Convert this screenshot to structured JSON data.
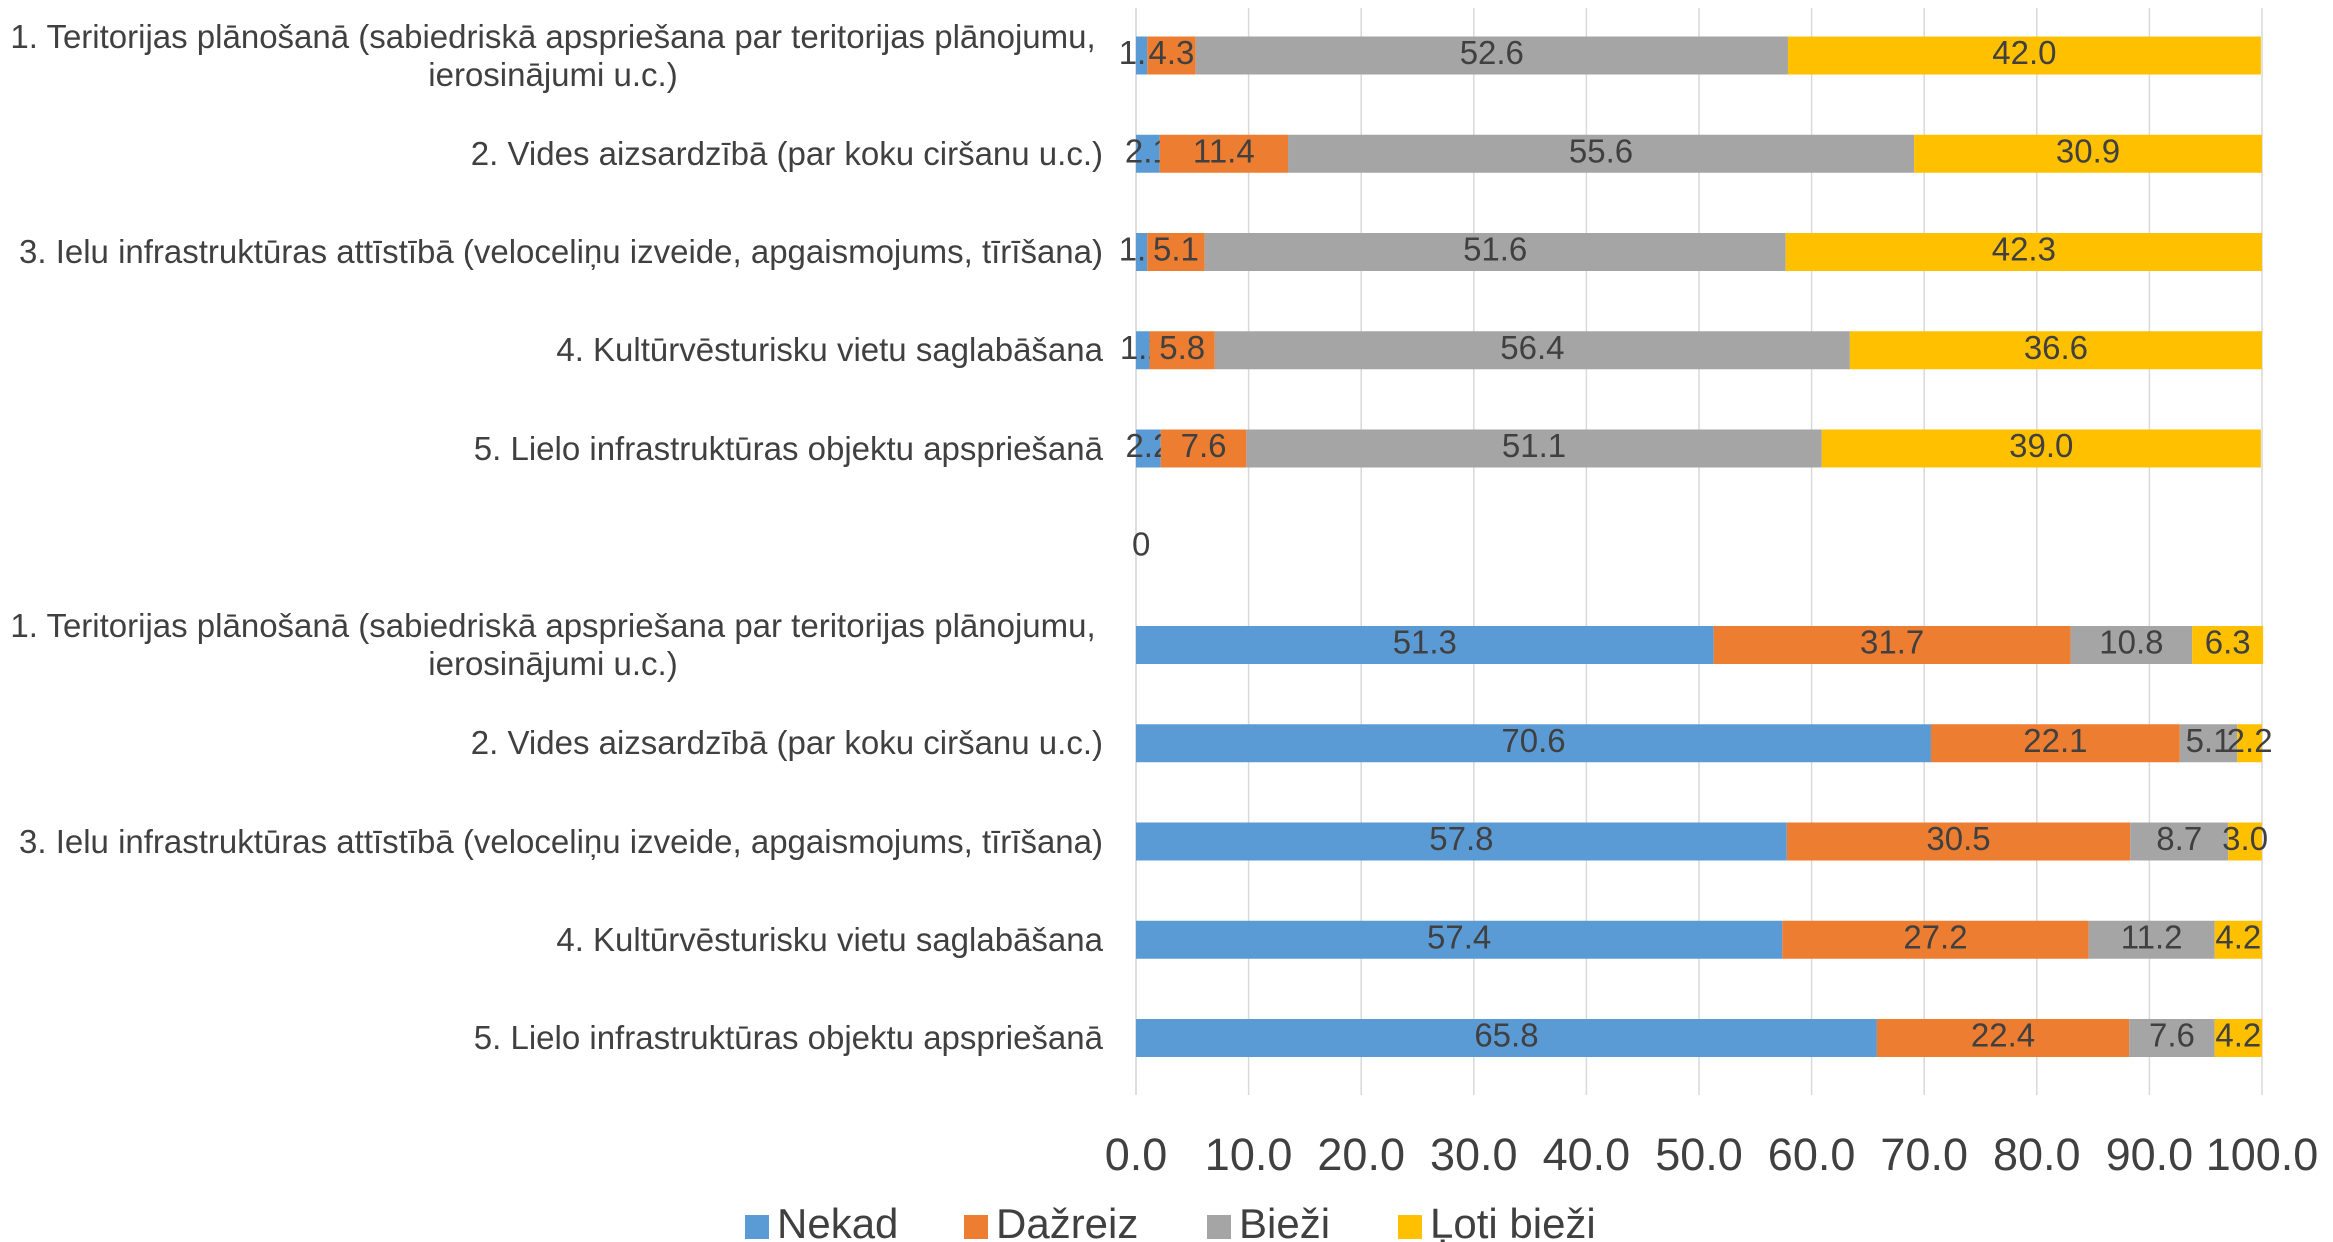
{
  "chart_data": {
    "type": "stacked-barh",
    "categories": [
      "1. Teritorijas plānošanā (sabiedriskā apspriešana par teritorijas plānojumu, ierosinājumi u.c.)",
      "2. Vides aizsardzībā (par koku ciršanu u.c.)",
      "3. Ielu infrastruktūras attīstībā (veloceliņu izveide, apgaismojums, tīrīšana)",
      "4. Kultūrvēsturisku vietu saglabāšana",
      "5. Lielo infrastruktūras objektu apspriešanā",
      "0",
      "1. Teritorijas plānošanā (sabiedriskā apspriešana par teritorijas plānojumu, ierosinājumi u.c.)",
      "2. Vides aizsardzībā (par koku ciršanu u.c.)",
      "3. Ielu infrastruktūras attīstībā (veloceliņu izveide, apgaismojums, tīrīšana)",
      "4. Kultūrvēsturisku vietu saglabāšana",
      "5. Lielo infrastruktūras objektu apspriešanā"
    ],
    "series": [
      {
        "name": "Nekad",
        "color": "#5b9bd5",
        "values": [
          1.0,
          2.1,
          1.0,
          1.2,
          2.2,
          null,
          51.3,
          70.6,
          57.8,
          57.4,
          65.8
        ],
        "value_labels": [
          "1.0",
          "2.1",
          "1.0",
          "1.2",
          "2.2",
          null,
          "51.3",
          "70.6",
          "57.8",
          "57.4",
          "65.8"
        ]
      },
      {
        "name": "Dažreiz",
        "color": "#ed7d31",
        "values": [
          4.3,
          11.4,
          5.1,
          5.8,
          7.6,
          null,
          31.7,
          22.1,
          30.5,
          27.2,
          22.4
        ],
        "value_labels": [
          "4.3",
          "11.4",
          "5.1",
          "5.8",
          "7.6",
          null,
          "31.7",
          "22.1",
          "30.5",
          "27.2",
          "22.4"
        ]
      },
      {
        "name": "Bieži",
        "color": "#a5a5a5",
        "values": [
          52.6,
          55.6,
          51.6,
          56.4,
          51.1,
          null,
          10.8,
          5.1,
          8.7,
          11.2,
          7.6
        ],
        "value_labels": [
          "52.6",
          "55.6",
          "51.6",
          "56.4",
          "51.1",
          null,
          "10.8",
          "5.1",
          "8.7",
          "11.2",
          "7.6"
        ]
      },
      {
        "name": "Ļoti bieži",
        "color": "#ffc000",
        "values": [
          42.0,
          30.9,
          42.3,
          36.6,
          39.0,
          null,
          6.3,
          2.2,
          3.0,
          4.2,
          4.2
        ],
        "value_labels": [
          "42.0",
          "30.9",
          "42.3",
          "36.6",
          "39.0",
          null,
          "6.3",
          "2.2",
          "3.0",
          "4.2",
          "4.2"
        ]
      }
    ],
    "xlim": [
      0,
      100
    ],
    "xticks": [
      {
        "value": 0,
        "label": "0.0"
      },
      {
        "value": 10,
        "label": "10.0"
      },
      {
        "value": 20,
        "label": "20.0"
      },
      {
        "value": 30,
        "label": "30.0"
      },
      {
        "value": 40,
        "label": "40.0"
      },
      {
        "value": 50,
        "label": "50.0"
      },
      {
        "value": 60,
        "label": "60.0"
      },
      {
        "value": 70,
        "label": "70.0"
      },
      {
        "value": 80,
        "label": "80.0"
      },
      {
        "value": 90,
        "label": "90.0"
      },
      {
        "value": 100,
        "label": "100.0"
      }
    ],
    "grid": true,
    "legend": "bottom"
  }
}
